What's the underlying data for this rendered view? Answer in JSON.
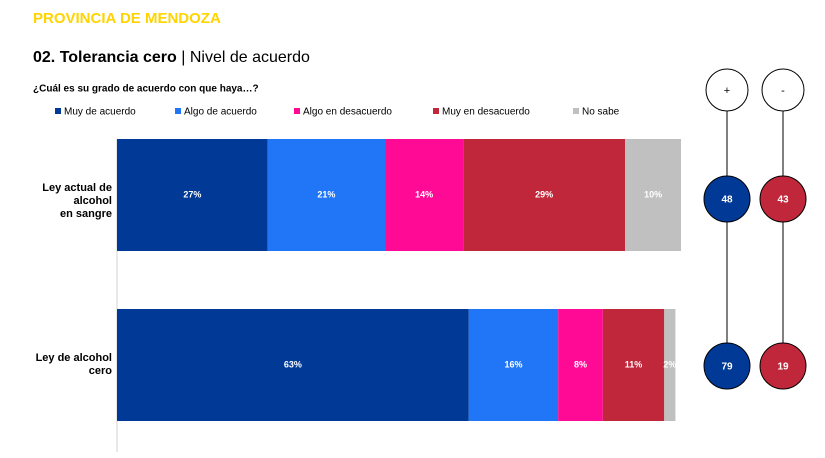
{
  "header": "PROVINCIA DE MENDOZA",
  "title_bold": "02. Tolerancia cero",
  "title_rest": "| Nivel de acuerdo",
  "chart_data": {
    "type": "stacked-bar-horizontal",
    "subtitle": "¿Cuál es su grado de acuerdo con que haya…?",
    "categories": [
      "Ley actual de alcohol\nen sangre",
      "Ley de alcohol\ncero"
    ],
    "series": [
      {
        "name": "Muy de acuerdo",
        "color": "#003a96",
        "values": [
          27,
          63
        ],
        "value_labels": [
          "27%",
          "63%"
        ]
      },
      {
        "name": "Algo de acuerdo",
        "color": "#2176f7",
        "values": [
          21,
          16
        ],
        "value_labels": [
          "21%",
          "16%"
        ]
      },
      {
        "name": "Algo en desacuerdo",
        "color": "#ff0a94",
        "values": [
          14,
          8
        ],
        "value_labels": [
          "14%",
          "8%"
        ]
      },
      {
        "name": "Muy en desacuerdo",
        "color": "#c1273a",
        "values": [
          29,
          11
        ],
        "value_labels": [
          "29%",
          "11%"
        ]
      },
      {
        "name": "No sabe",
        "color": "#c0c0c0",
        "values": [
          10,
          2
        ],
        "value_labels": [
          "10%",
          "2%"
        ]
      }
    ]
  },
  "summary": [
    {
      "label": "+",
      "color": "#003a96",
      "values": [
        48,
        79
      ]
    },
    {
      "label": "-",
      "color": "#c1273a",
      "values": [
        43,
        19
      ]
    }
  ]
}
